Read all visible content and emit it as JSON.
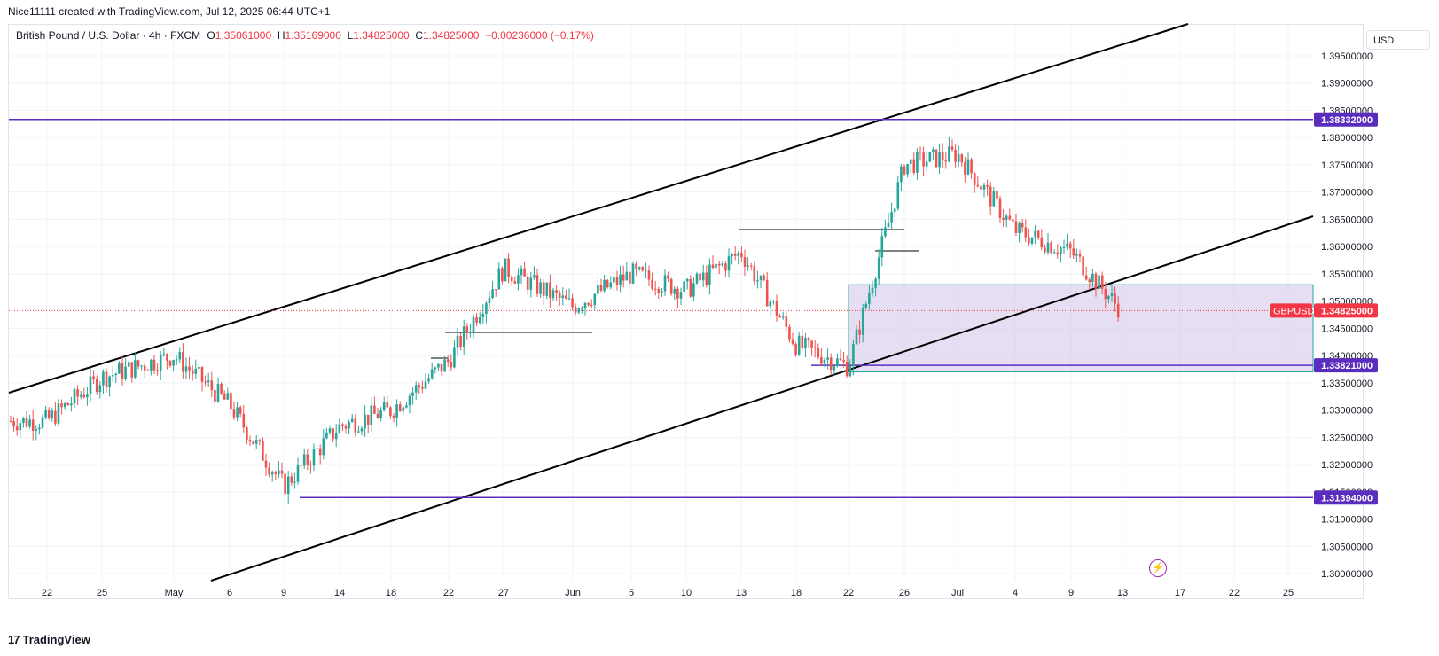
{
  "header": {
    "attribution": "Nice11111 created with TradingView.com, Jul 12, 2025 06:44 UTC+1"
  },
  "legend": {
    "symbol": "British Pound / U.S. Dollar · 4h · FXCM",
    "open_label": "O",
    "open": "1.35061000",
    "high_label": "H",
    "high": "1.35169000",
    "low_label": "L",
    "low": "1.34825000",
    "close_label": "C",
    "close": "1.34825000",
    "change": "−0.00236000 (−0.17%)"
  },
  "currency_button": "USD",
  "footer": {
    "brand": "TradingView",
    "brand_mark": "17"
  },
  "chart_data": {
    "type": "candlestick",
    "symbol": "GBPUSD",
    "timeframe": "4h",
    "y_range": [
      1.296,
      1.4
    ],
    "y_ticks": [
      "1.30000000",
      "1.30500000",
      "1.31000000",
      "1.31500000",
      "1.32000000",
      "1.32500000",
      "1.33000000",
      "1.33500000",
      "1.34000000",
      "1.34500000",
      "1.35000000",
      "1.35500000",
      "1.36000000",
      "1.36500000",
      "1.37000000",
      "1.37500000",
      "1.38000000",
      "1.38500000",
      "1.39000000",
      "1.39500000"
    ],
    "x_ticks": [
      "22",
      "25",
      "May",
      "6",
      "9",
      "14",
      "18",
      "22",
      "27",
      "Jun",
      "5",
      "10",
      "13",
      "18",
      "22",
      "26",
      "Jul",
      "4",
      "9",
      "13",
      "17",
      "22",
      "25"
    ],
    "price_labels": [
      {
        "text": "1.38332000",
        "value": 1.38332,
        "color": "#5b2dbf"
      },
      {
        "text": "1.34825000",
        "value": 1.34825,
        "color": "#f23645",
        "tag": "GBPUSD"
      },
      {
        "text": "1.33821000",
        "value": 1.33821,
        "color": "#5b2dbf"
      },
      {
        "text": "1.31394000",
        "value": 1.31394,
        "color": "#5b2dbf"
      }
    ],
    "horizontal_levels": [
      1.38332,
      1.33821,
      1.31394
    ],
    "current_price": 1.34825,
    "price_path": [
      [
        "22",
        1.328
      ],
      [
        "25",
        1.336
      ],
      [
        "May",
        1.34
      ],
      [
        "6",
        1.331
      ],
      [
        "9",
        1.316
      ],
      [
        "14",
        1.327
      ],
      [
        "18",
        1.33
      ],
      [
        "22",
        1.339
      ],
      [
        "27",
        1.356
      ],
      [
        "Jun",
        1.349
      ],
      [
        "5",
        1.355
      ],
      [
        "10",
        1.352
      ],
      [
        "13",
        1.359
      ],
      [
        "18",
        1.342
      ],
      [
        "22",
        1.338
      ],
      [
        "26",
        1.375
      ],
      [
        "Jul",
        1.377
      ],
      [
        "4",
        1.363
      ],
      [
        "9",
        1.359
      ],
      [
        "13",
        1.348
      ]
    ],
    "colors": {
      "up": "#26a69a",
      "down": "#ef5350",
      "levels": "#5b2dbf",
      "channel": "#000000",
      "zone": "#d1c4e9"
    }
  }
}
